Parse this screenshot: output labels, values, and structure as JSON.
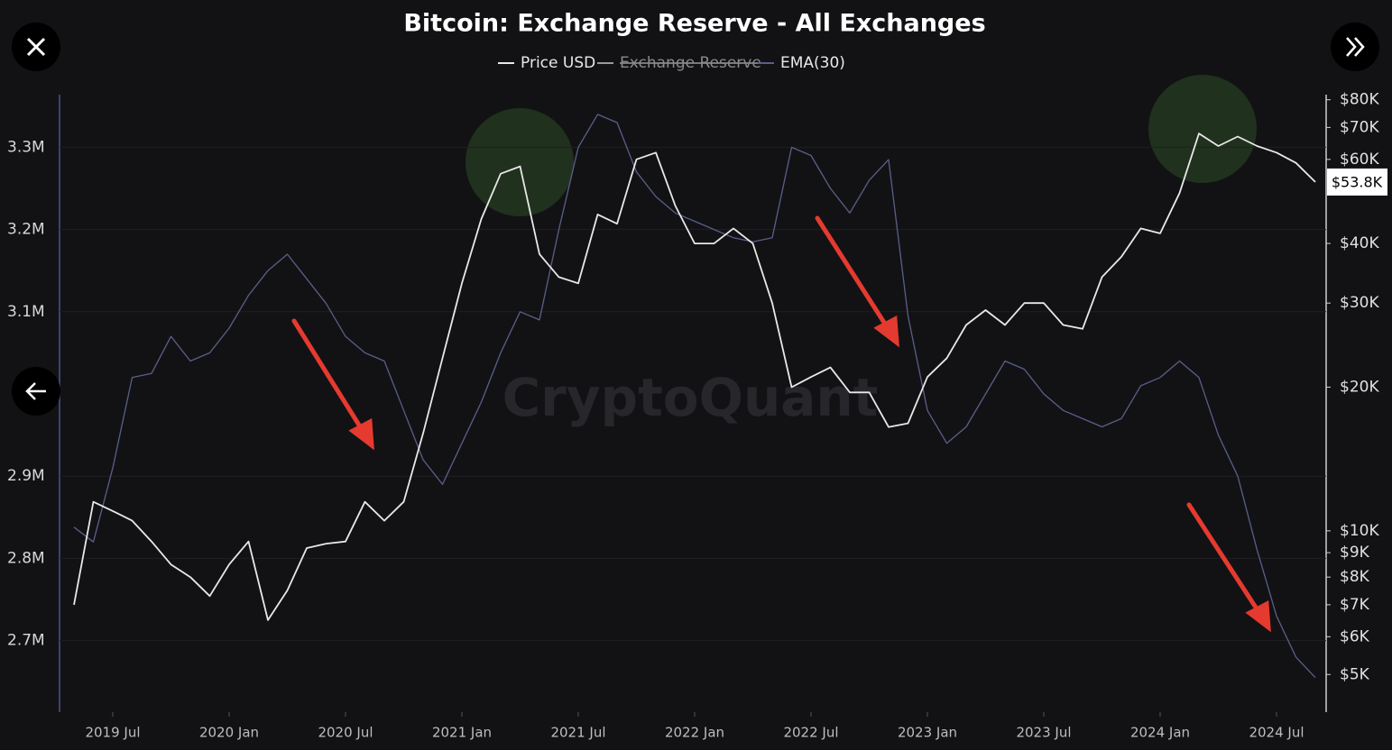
{
  "chart_data": {
    "type": "line",
    "title": "Bitcoin: Exchange Reserve - All Exchanges",
    "watermark": "CryptoQuant",
    "categories": [
      null,
      null,
      "2019 Jul",
      null,
      null,
      null,
      null,
      null,
      "2020 Jan",
      null,
      null,
      null,
      null,
      null,
      "2020 Jul",
      null,
      null,
      null,
      null,
      null,
      "2021 Jan",
      null,
      null,
      null,
      null,
      null,
      "2021 Jul",
      null,
      null,
      null,
      null,
      null,
      "2022 Jan",
      null,
      null,
      null,
      null,
      null,
      "2022 Jul",
      null,
      null,
      null,
      null,
      null,
      "2023 Jan",
      null,
      null,
      null,
      null,
      null,
      "2023 Jul",
      null,
      null,
      null,
      null,
      null,
      "2024 Jan",
      null,
      null,
      null,
      null,
      null,
      "2024 Jul",
      null,
      null
    ],
    "series": [
      {
        "name": "Price USD",
        "color": "#e8e8e8",
        "axis": "y2",
        "values": [
          7000,
          11500,
          11000,
          10500,
          9500,
          8500,
          8000,
          7300,
          8500,
          9500,
          6500,
          7500,
          9200,
          9400,
          9500,
          11500,
          10500,
          11500,
          16000,
          23000,
          33000,
          45000,
          56000,
          58000,
          38000,
          34000,
          33000,
          46000,
          44000,
          60000,
          62000,
          48000,
          40000,
          40000,
          43000,
          40000,
          30000,
          20000,
          21000,
          22000,
          19500,
          19500,
          16500,
          16800,
          21000,
          23000,
          27000,
          29000,
          27000,
          30000,
          30000,
          27000,
          26500,
          34000,
          37500,
          43000,
          42000,
          51000,
          68000,
          64000,
          67000,
          64000,
          62000,
          59000,
          53800
        ]
      },
      {
        "name": "Exchange Reserve",
        "color": "#9a9a9a",
        "hidden": true,
        "values": null
      },
      {
        "name": "EMA(30)",
        "color": "#5a5f88",
        "values": [
          2838000,
          2820000,
          2910000,
          3020000,
          3025000,
          3070000,
          3040000,
          3050000,
          3080000,
          3120000,
          3150000,
          3170000,
          3140000,
          3110000,
          3070000,
          3050000,
          3040000,
          2980000,
          2920000,
          2890000,
          2940000,
          2990000,
          3050000,
          3100000,
          3090000,
          3200000,
          3300000,
          3340000,
          3330000,
          3270000,
          3240000,
          3220000,
          3210000,
          3200000,
          3190000,
          3185000,
          3190000,
          3300000,
          3290000,
          3250000,
          3220000,
          3260000,
          3285000,
          3095000,
          2980000,
          2940000,
          2960000,
          3000000,
          3040000,
          3030000,
          3000000,
          2980000,
          2970000,
          2960000,
          2970000,
          3010000,
          3020000,
          3040000,
          3020000,
          2950000,
          2900000,
          2810000,
          2730000,
          2680000,
          2655000
        ]
      }
    ],
    "ylim": [
      2613000,
      3364000
    ],
    "yticks": [
      {
        "value": 2700000,
        "label": "2.7M"
      },
      {
        "value": 2800000,
        "label": "2.8M"
      },
      {
        "value": 2900000,
        "label": "2.9M"
      },
      {
        "value": 3100000,
        "label": "3.1M"
      },
      {
        "value": 3200000,
        "label": "3.2M"
      },
      {
        "value": 3300000,
        "label": "3.3M"
      }
    ],
    "y2lim": [
      4170,
      82000
    ],
    "y2log": true,
    "y2ticks": [
      {
        "value": 5000,
        "label": "$5K"
      },
      {
        "value": 6000,
        "label": "$6K"
      },
      {
        "value": 7000,
        "label": "$7K"
      },
      {
        "value": 8000,
        "label": "$8K"
      },
      {
        "value": 9000,
        "label": "$9K"
      },
      {
        "value": 10000,
        "label": "$10K"
      },
      {
        "value": 20000,
        "label": "$20K"
      },
      {
        "value": 30000,
        "label": "$30K"
      },
      {
        "value": 40000,
        "label": "$40K"
      },
      {
        "value": 60000,
        "label": "$60K"
      },
      {
        "value": 70000,
        "label": "$70K"
      },
      {
        "value": 80000,
        "label": "$80K"
      }
    ],
    "price_label": {
      "value": 53800,
      "label": "$53.8K"
    },
    "grid": true,
    "legend": "top"
  }
}
